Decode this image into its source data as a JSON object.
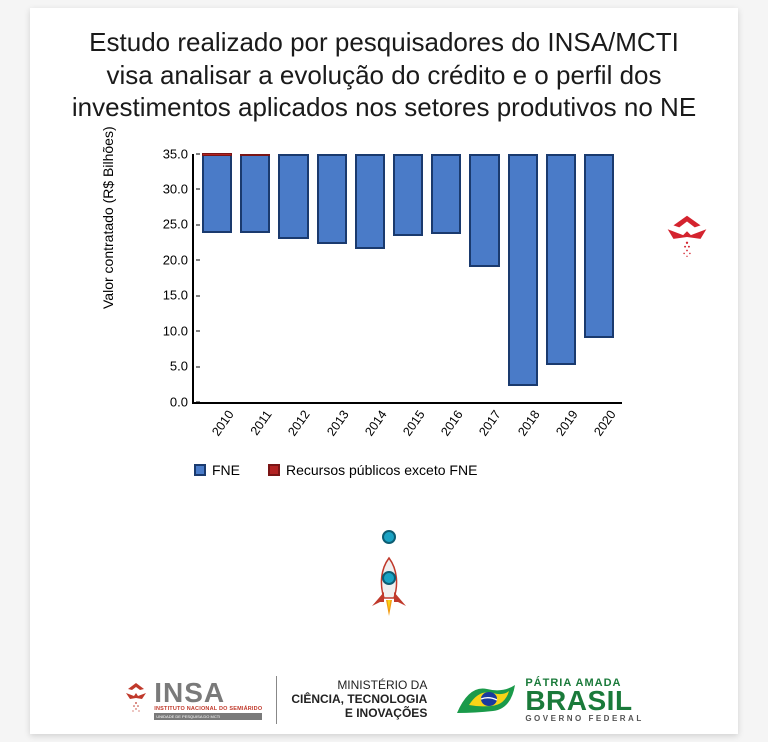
{
  "title": "Estudo realizado por pesquisadores do INSA/MCTI visa analisar a evolução do crédito e o perfil dos investimentos aplicados nos setores produtivos no NE",
  "chart": {
    "type": "bar",
    "ylabel": "Valor contratado  (R$ Bilhões)",
    "ylim": [
      0,
      35
    ],
    "yticks": [
      "0.0",
      "5.0",
      "10.0",
      "15.0",
      "20.0",
      "25.0",
      "30.0",
      "35.0"
    ],
    "ytick_values": [
      0,
      5,
      10,
      15,
      20,
      25,
      30,
      35
    ],
    "categories": [
      "2010",
      "2011",
      "2012",
      "2013",
      "2014",
      "2015",
      "2016",
      "2017",
      "2018",
      "2019",
      "2020"
    ],
    "series": {
      "fne": {
        "label": "FNE",
        "color": "#4a7bc8",
        "border": "#1a3a6e",
        "values": [
          11.2,
          11.2,
          12.0,
          12.8,
          13.5,
          11.6,
          11.3,
          16.0,
          32.8,
          29.8,
          26.0
        ]
      },
      "recursos": {
        "label": "Recursos públicos exceto FNE",
        "color": "#b22222",
        "border": "#7a1515",
        "values": [
          0.4,
          0.2,
          0,
          0,
          0,
          0,
          0,
          0,
          0,
          0,
          0
        ]
      }
    },
    "background_color": "#ffffff",
    "label_fontsize": 14,
    "tick_fontsize": 13
  },
  "footer": {
    "insa": {
      "name": "INSA",
      "line1": "INSTITUTO NACIONAL DO SEMIÁRIDO",
      "line2": "UNIDADE DE PESQUISA DO MCTI"
    },
    "ministry": {
      "line1": "MINISTÉRIO DA",
      "line2": "CIÊNCIA, TECNOLOGIA",
      "line3": "E INOVAÇÕES"
    },
    "brasil": {
      "line1": "PÁTRIA AMADA",
      "line2": "BRASIL",
      "line3": "GOVERNO FEDERAL",
      "flag_green": "#1a9a4a",
      "flag_yellow": "#f7d417",
      "flag_blue": "#1a3a9e"
    }
  },
  "colors": {
    "decor_red": "#d4232e"
  }
}
